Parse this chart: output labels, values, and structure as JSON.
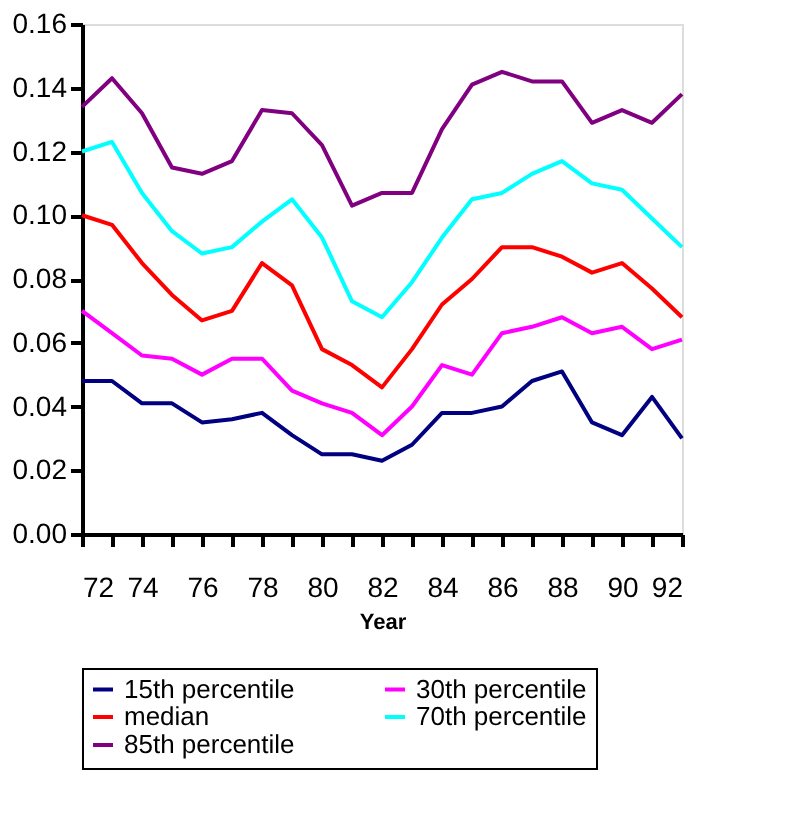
{
  "chart_data": {
    "type": "line",
    "xlabel": "Year",
    "x": [
      72,
      73,
      74,
      75,
      76,
      77,
      78,
      79,
      80,
      81,
      82,
      83,
      84,
      85,
      86,
      87,
      88,
      89,
      90,
      91,
      92
    ],
    "xlim": [
      72,
      92
    ],
    "xticks": [
      72,
      {
        "value": 73,
        "label": null
      },
      74,
      {
        "value": 75,
        "label": null
      },
      76,
      {
        "value": 77,
        "label": null
      },
      78,
      {
        "value": 79,
        "label": null
      },
      80,
      {
        "value": 81,
        "label": null
      },
      82,
      {
        "value": 83,
        "label": null
      },
      84,
      {
        "value": 85,
        "label": null
      },
      86,
      {
        "value": 87,
        "label": null
      },
      88,
      {
        "value": 89,
        "label": null
      },
      90,
      {
        "value": 91,
        "label": null
      },
      92
    ],
    "ylim": [
      0,
      0.16
    ],
    "yticks": [
      {
        "value": 0,
        "label": "0.00"
      },
      {
        "value": 0.02,
        "label": "0.02"
      },
      {
        "value": 0.04,
        "label": "0.04"
      },
      {
        "value": 0.06,
        "label": "0.06"
      },
      {
        "value": 0.08,
        "label": "0.08"
      },
      {
        "value": 0.1,
        "label": "0.10"
      },
      {
        "value": 0.12,
        "label": "0.12"
      },
      {
        "value": 0.14,
        "label": "0.14"
      },
      {
        "value": 0.16,
        "label": "0.16"
      }
    ],
    "grid": false,
    "legend": "bottom",
    "marker": "none",
    "line_style": "solid",
    "series": [
      {
        "name": "15th percentile",
        "color": "#000080",
        "values": [
          0.048,
          0.048,
          0.041,
          0.041,
          0.035,
          0.036,
          0.038,
          0.031,
          0.025,
          0.025,
          0.023,
          0.028,
          0.038,
          0.038,
          0.04,
          0.048,
          0.051,
          0.035,
          0.031,
          0.043,
          0.03
        ]
      },
      {
        "name": "30th percentile",
        "color": "#ff00ff",
        "values": [
          0.07,
          0.063,
          0.056,
          0.055,
          0.05,
          0.055,
          0.055,
          0.045,
          0.041,
          0.038,
          0.031,
          0.04,
          0.053,
          0.05,
          0.063,
          0.065,
          0.068,
          0.063,
          0.065,
          0.058,
          0.061
        ]
      },
      {
        "name": "median",
        "color": "#ff0000",
        "values": [
          0.1,
          0.097,
          0.085,
          0.075,
          0.067,
          0.07,
          0.085,
          0.078,
          0.058,
          0.053,
          0.046,
          0.058,
          0.072,
          0.08,
          0.09,
          0.09,
          0.087,
          0.082,
          0.085,
          0.077,
          0.068
        ]
      },
      {
        "name": "70th percentile",
        "color": "#00ffff",
        "values": [
          0.12,
          0.123,
          0.107,
          0.095,
          0.088,
          0.09,
          0.098,
          0.105,
          0.093,
          0.073,
          0.068,
          0.079,
          0.093,
          0.105,
          0.107,
          0.113,
          0.117,
          0.11,
          0.108,
          0.099,
          0.09
        ]
      },
      {
        "name": "85th percentile",
        "color": "#800080",
        "values": [
          0.134,
          0.143,
          0.132,
          0.115,
          0.113,
          0.117,
          0.133,
          0.132,
          0.122,
          0.103,
          0.107,
          0.107,
          0.127,
          0.141,
          0.145,
          0.142,
          0.142,
          0.129,
          0.133,
          0.129,
          0.138
        ]
      }
    ]
  }
}
